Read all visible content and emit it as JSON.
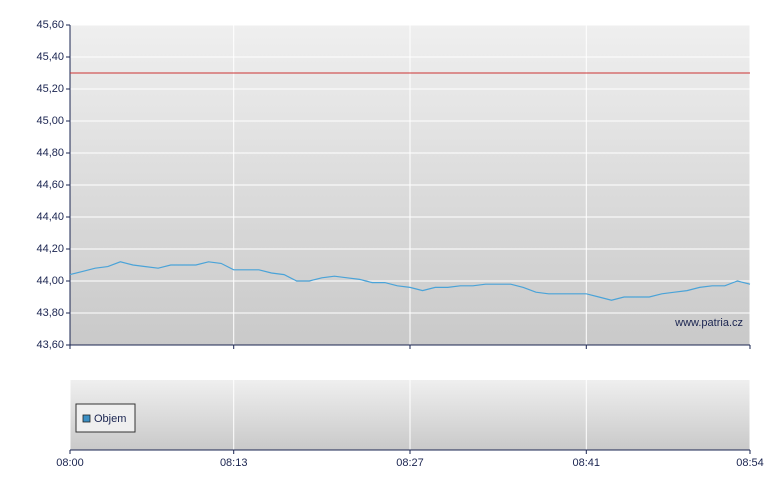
{
  "chart_data": {
    "type": "line",
    "x": [
      "08:00",
      "08:01",
      "08:02",
      "08:03",
      "08:04",
      "08:05",
      "08:06",
      "08:07",
      "08:08",
      "08:09",
      "08:10",
      "08:11",
      "08:12",
      "08:13",
      "08:14",
      "08:15",
      "08:16",
      "08:17",
      "08:18",
      "08:19",
      "08:20",
      "08:21",
      "08:22",
      "08:23",
      "08:24",
      "08:25",
      "08:26",
      "08:27",
      "08:28",
      "08:29",
      "08:30",
      "08:31",
      "08:32",
      "08:33",
      "08:34",
      "08:35",
      "08:36",
      "08:37",
      "08:38",
      "08:39",
      "08:40",
      "08:41",
      "08:42",
      "08:43",
      "08:44",
      "08:45",
      "08:46",
      "08:47",
      "08:48",
      "08:49",
      "08:50",
      "08:51",
      "08:52",
      "08:53",
      "08:54"
    ],
    "series": [
      {
        "color": "#4aa3d8",
        "values": [
          44.04,
          44.06,
          44.08,
          44.09,
          44.12,
          44.1,
          44.09,
          44.08,
          44.1,
          44.1,
          44.1,
          44.12,
          44.11,
          44.07,
          44.07,
          44.07,
          44.05,
          44.04,
          44.0,
          44.0,
          44.02,
          44.03,
          44.02,
          44.01,
          43.99,
          43.99,
          43.97,
          43.96,
          43.94,
          43.96,
          43.96,
          43.97,
          43.97,
          43.98,
          43.98,
          43.98,
          43.96,
          43.93,
          43.92,
          43.92,
          43.92,
          43.92,
          43.9,
          43.88,
          43.9,
          43.9,
          43.9,
          43.92,
          43.93,
          43.94,
          43.96,
          43.97,
          43.97,
          44.0,
          43.98
        ]
      }
    ],
    "reference_line": {
      "value": 45.3,
      "color": "#cc3333"
    },
    "ylim": [
      43.6,
      45.6
    ],
    "yticks": [
      {
        "value": 43.6,
        "label": "43,60"
      },
      {
        "value": 43.8,
        "label": "43,80"
      },
      {
        "value": 44.0,
        "label": "44,00"
      },
      {
        "value": 44.2,
        "label": "44,20"
      },
      {
        "value": 44.4,
        "label": "44,40"
      },
      {
        "value": 44.6,
        "label": "44,60"
      },
      {
        "value": 44.8,
        "label": "44,80"
      },
      {
        "value": 45.0,
        "label": "45,00"
      },
      {
        "value": 45.2,
        "label": "45,20"
      },
      {
        "value": 45.4,
        "label": "45,40"
      },
      {
        "value": 45.6,
        "label": "45,60"
      }
    ],
    "xlim": [
      "08:00",
      "08:54"
    ],
    "xticks": [
      "08:00",
      "08:13",
      "08:27",
      "08:41",
      "08:54"
    ],
    "grid": true,
    "watermark": "www.patria.cz",
    "volume": {
      "type": "bar",
      "series": [
        {
          "name": "Objem",
          "color": "#3b8fc4",
          "values": []
        }
      ]
    }
  }
}
